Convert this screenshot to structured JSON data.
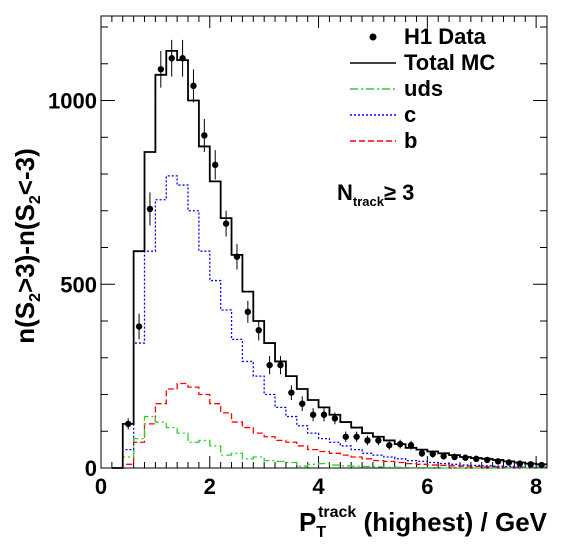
{
  "chart_data": {
    "type": "histogram",
    "xlabel_main": "P",
    "xlabel_sub": "T",
    "xlabel_sup": "track",
    "xlabel_rest": " (highest)  / GeV",
    "ylabel_parts": [
      "n(S",
      "2",
      ">3)-n(S",
      "2",
      "<-3)"
    ],
    "xlim": [
      0,
      8.2
    ],
    "ylim": [
      0,
      1230
    ],
    "xticks": [
      0,
      2,
      4,
      6,
      8
    ],
    "yticks": [
      0,
      500,
      1000
    ],
    "legend": {
      "position": "top-right",
      "entries": [
        {
          "label": "H1 Data",
          "style": "marker",
          "color": "#000000"
        },
        {
          "label": "Total MC",
          "style": "solid",
          "color": "#000000"
        },
        {
          "label": "uds",
          "style": "dashdot",
          "color": "#33cc33"
        },
        {
          "label": "c",
          "style": "dotted",
          "color": "#0000ff"
        },
        {
          "label": "b",
          "style": "dashed",
          "color": "#ff0000"
        }
      ]
    },
    "annotation": {
      "main": "N",
      "sub": "track",
      "rest": "≥ 3"
    },
    "bin_edges": [
      0.2,
      0.4,
      0.6,
      0.8,
      1.0,
      1.2,
      1.4,
      1.6,
      1.8,
      2.0,
      2.2,
      2.4,
      2.6,
      2.8,
      3.0,
      3.2,
      3.4,
      3.6,
      3.8,
      4.0,
      4.2,
      4.4,
      4.6,
      4.8,
      5.0,
      5.2,
      5.4,
      5.6,
      5.8,
      6.0,
      6.2,
      6.4,
      6.6,
      6.8,
      7.0,
      7.2,
      7.4,
      7.6,
      7.8,
      8.0,
      8.2
    ],
    "series": [
      {
        "name": "Total MC",
        "color": "#000000",
        "dash": "",
        "values": [
          0,
          120,
          590,
          860,
          1070,
          1135,
          1110,
          1000,
          875,
          780,
          680,
          580,
          480,
          400,
          340,
          290,
          250,
          215,
          185,
          165,
          145,
          125,
          110,
          95,
          85,
          75,
          65,
          55,
          50,
          45,
          40,
          35,
          30,
          27,
          25,
          22,
          18,
          15,
          12,
          10
        ]
      },
      {
        "name": "uds",
        "color": "#33cc33",
        "dash": "8,3,2,3",
        "values": [
          0,
          30,
          80,
          140,
          125,
          110,
          95,
          70,
          75,
          60,
          35,
          40,
          25,
          30,
          20,
          18,
          15,
          5,
          10,
          12,
          8,
          6,
          5,
          4,
          3,
          2,
          2,
          1,
          1,
          1,
          0,
          0,
          0,
          0,
          0,
          0,
          0,
          0,
          0,
          0
        ]
      },
      {
        "name": "c",
        "color": "#0000ff",
        "dash": "2,2",
        "values": [
          0,
          50,
          340,
          590,
          730,
          795,
          770,
          700,
          590,
          510,
          430,
          350,
          290,
          250,
          200,
          165,
          140,
          115,
          95,
          80,
          70,
          60,
          50,
          40,
          35,
          30,
          25,
          20,
          18,
          15,
          12,
          10,
          8,
          7,
          6,
          5,
          4,
          3,
          2,
          2
        ]
      },
      {
        "name": "b",
        "color": "#ff0000",
        "dash": "6,3",
        "values": [
          0,
          10,
          70,
          120,
          175,
          215,
          230,
          220,
          200,
          175,
          150,
          125,
          110,
          95,
          85,
          75,
          70,
          60,
          50,
          45,
          40,
          35,
          30,
          25,
          20,
          18,
          15,
          12,
          10,
          8,
          7,
          6,
          5,
          4,
          3,
          3,
          2,
          2,
          1,
          1
        ]
      }
    ],
    "data_points": [
      {
        "x": 0.5,
        "y": 120,
        "err": 15
      },
      {
        "x": 0.7,
        "y": 385,
        "err": 35
      },
      {
        "x": 0.9,
        "y": 705,
        "err": 45
      },
      {
        "x": 1.1,
        "y": 1085,
        "err": 50
      },
      {
        "x": 1.3,
        "y": 1115,
        "err": 50
      },
      {
        "x": 1.5,
        "y": 1115,
        "err": 50
      },
      {
        "x": 1.7,
        "y": 1040,
        "err": 45
      },
      {
        "x": 1.9,
        "y": 905,
        "err": 45
      },
      {
        "x": 2.1,
        "y": 825,
        "err": 40
      },
      {
        "x": 2.3,
        "y": 665,
        "err": 35
      },
      {
        "x": 2.5,
        "y": 575,
        "err": 35
      },
      {
        "x": 2.7,
        "y": 425,
        "err": 30
      },
      {
        "x": 2.9,
        "y": 375,
        "err": 28
      },
      {
        "x": 3.1,
        "y": 280,
        "err": 25
      },
      {
        "x": 3.3,
        "y": 280,
        "err": 25
      },
      {
        "x": 3.5,
        "y": 205,
        "err": 20
      },
      {
        "x": 3.7,
        "y": 175,
        "err": 20
      },
      {
        "x": 3.9,
        "y": 145,
        "err": 18
      },
      {
        "x": 4.1,
        "y": 145,
        "err": 18
      },
      {
        "x": 4.3,
        "y": 135,
        "err": 16
      },
      {
        "x": 4.5,
        "y": 85,
        "err": 14
      },
      {
        "x": 4.7,
        "y": 85,
        "err": 14
      },
      {
        "x": 4.9,
        "y": 75,
        "err": 13
      },
      {
        "x": 5.1,
        "y": 75,
        "err": 13
      },
      {
        "x": 5.3,
        "y": 62,
        "err": 12
      },
      {
        "x": 5.5,
        "y": 65,
        "err": 12
      },
      {
        "x": 5.7,
        "y": 62,
        "err": 12
      },
      {
        "x": 5.9,
        "y": 40,
        "err": 10
      },
      {
        "x": 6.1,
        "y": 38,
        "err": 10
      },
      {
        "x": 6.3,
        "y": 32,
        "err": 9
      },
      {
        "x": 6.5,
        "y": 30,
        "err": 9
      },
      {
        "x": 6.7,
        "y": 28,
        "err": 8
      },
      {
        "x": 6.9,
        "y": 25,
        "err": 8
      },
      {
        "x": 7.1,
        "y": 22,
        "err": 7
      },
      {
        "x": 7.3,
        "y": 18,
        "err": 7
      },
      {
        "x": 7.5,
        "y": 15,
        "err": 6
      },
      {
        "x": 7.7,
        "y": 12,
        "err": 6
      },
      {
        "x": 7.9,
        "y": 10,
        "err": 5
      },
      {
        "x": 8.1,
        "y": 8,
        "err": 5
      }
    ]
  }
}
